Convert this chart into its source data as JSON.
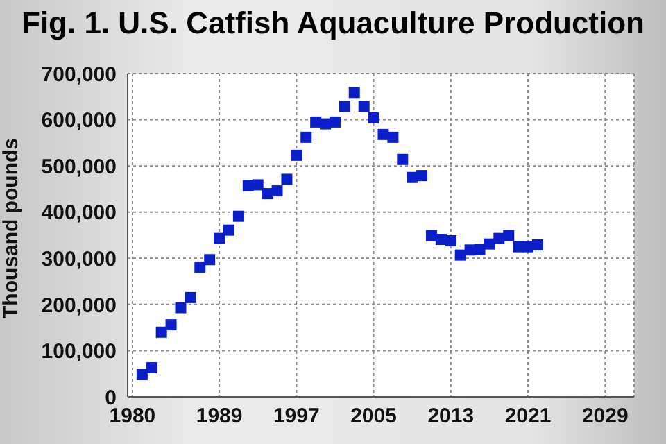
{
  "chart_data": {
    "type": "scatter",
    "title": "Fig. 1. U.S. Catfish Aquaculture Production",
    "ylabel": "Thousand pounds",
    "x": [
      1981,
      1982,
      1983,
      1984,
      1985,
      1986,
      1987,
      1988,
      1989,
      1990,
      1991,
      1992,
      1993,
      1994,
      1995,
      1996,
      1997,
      1998,
      1999,
      2000,
      2001,
      2002,
      2003,
      2004,
      2005,
      2006,
      2007,
      2008,
      2009,
      2010,
      2011,
      2012,
      2013,
      2014,
      2015,
      2016,
      2017,
      2018,
      2019,
      2020,
      2021,
      2022
    ],
    "series": [
      {
        "color": "#0a1fc8",
        "values": [
          48000,
          63000,
          140000,
          156000,
          193000,
          215000,
          281000,
          297000,
          343000,
          361000,
          391000,
          457000,
          459000,
          440000,
          446000,
          471000,
          523000,
          562000,
          595000,
          591000,
          595000,
          629000,
          659000,
          629000,
          604000,
          568000,
          562000,
          514000,
          475000,
          479000,
          349000,
          341000,
          338000,
          307000,
          318000,
          319000,
          331000,
          343000,
          349000,
          325000,
          325000,
          329000
        ]
      }
    ],
    "xlim": [
      1979.5,
      2032
    ],
    "xticks": [
      1980,
      1989,
      1997,
      2005,
      2013,
      2021,
      2029
    ],
    "ylim": [
      0,
      700000
    ],
    "yticks": [
      {
        "value": 0,
        "label": "0"
      },
      {
        "value": 100000,
        "label": "100,000"
      },
      {
        "value": 200000,
        "label": "200,000"
      },
      {
        "value": 300000,
        "label": "300,000"
      },
      {
        "value": 400000,
        "label": "400,000"
      },
      {
        "value": 500000,
        "label": "500,000"
      },
      {
        "value": 600000,
        "label": "600,000"
      },
      {
        "value": 700000,
        "label": "700,000"
      }
    ],
    "grid": true,
    "marker": "square",
    "legend": false
  }
}
